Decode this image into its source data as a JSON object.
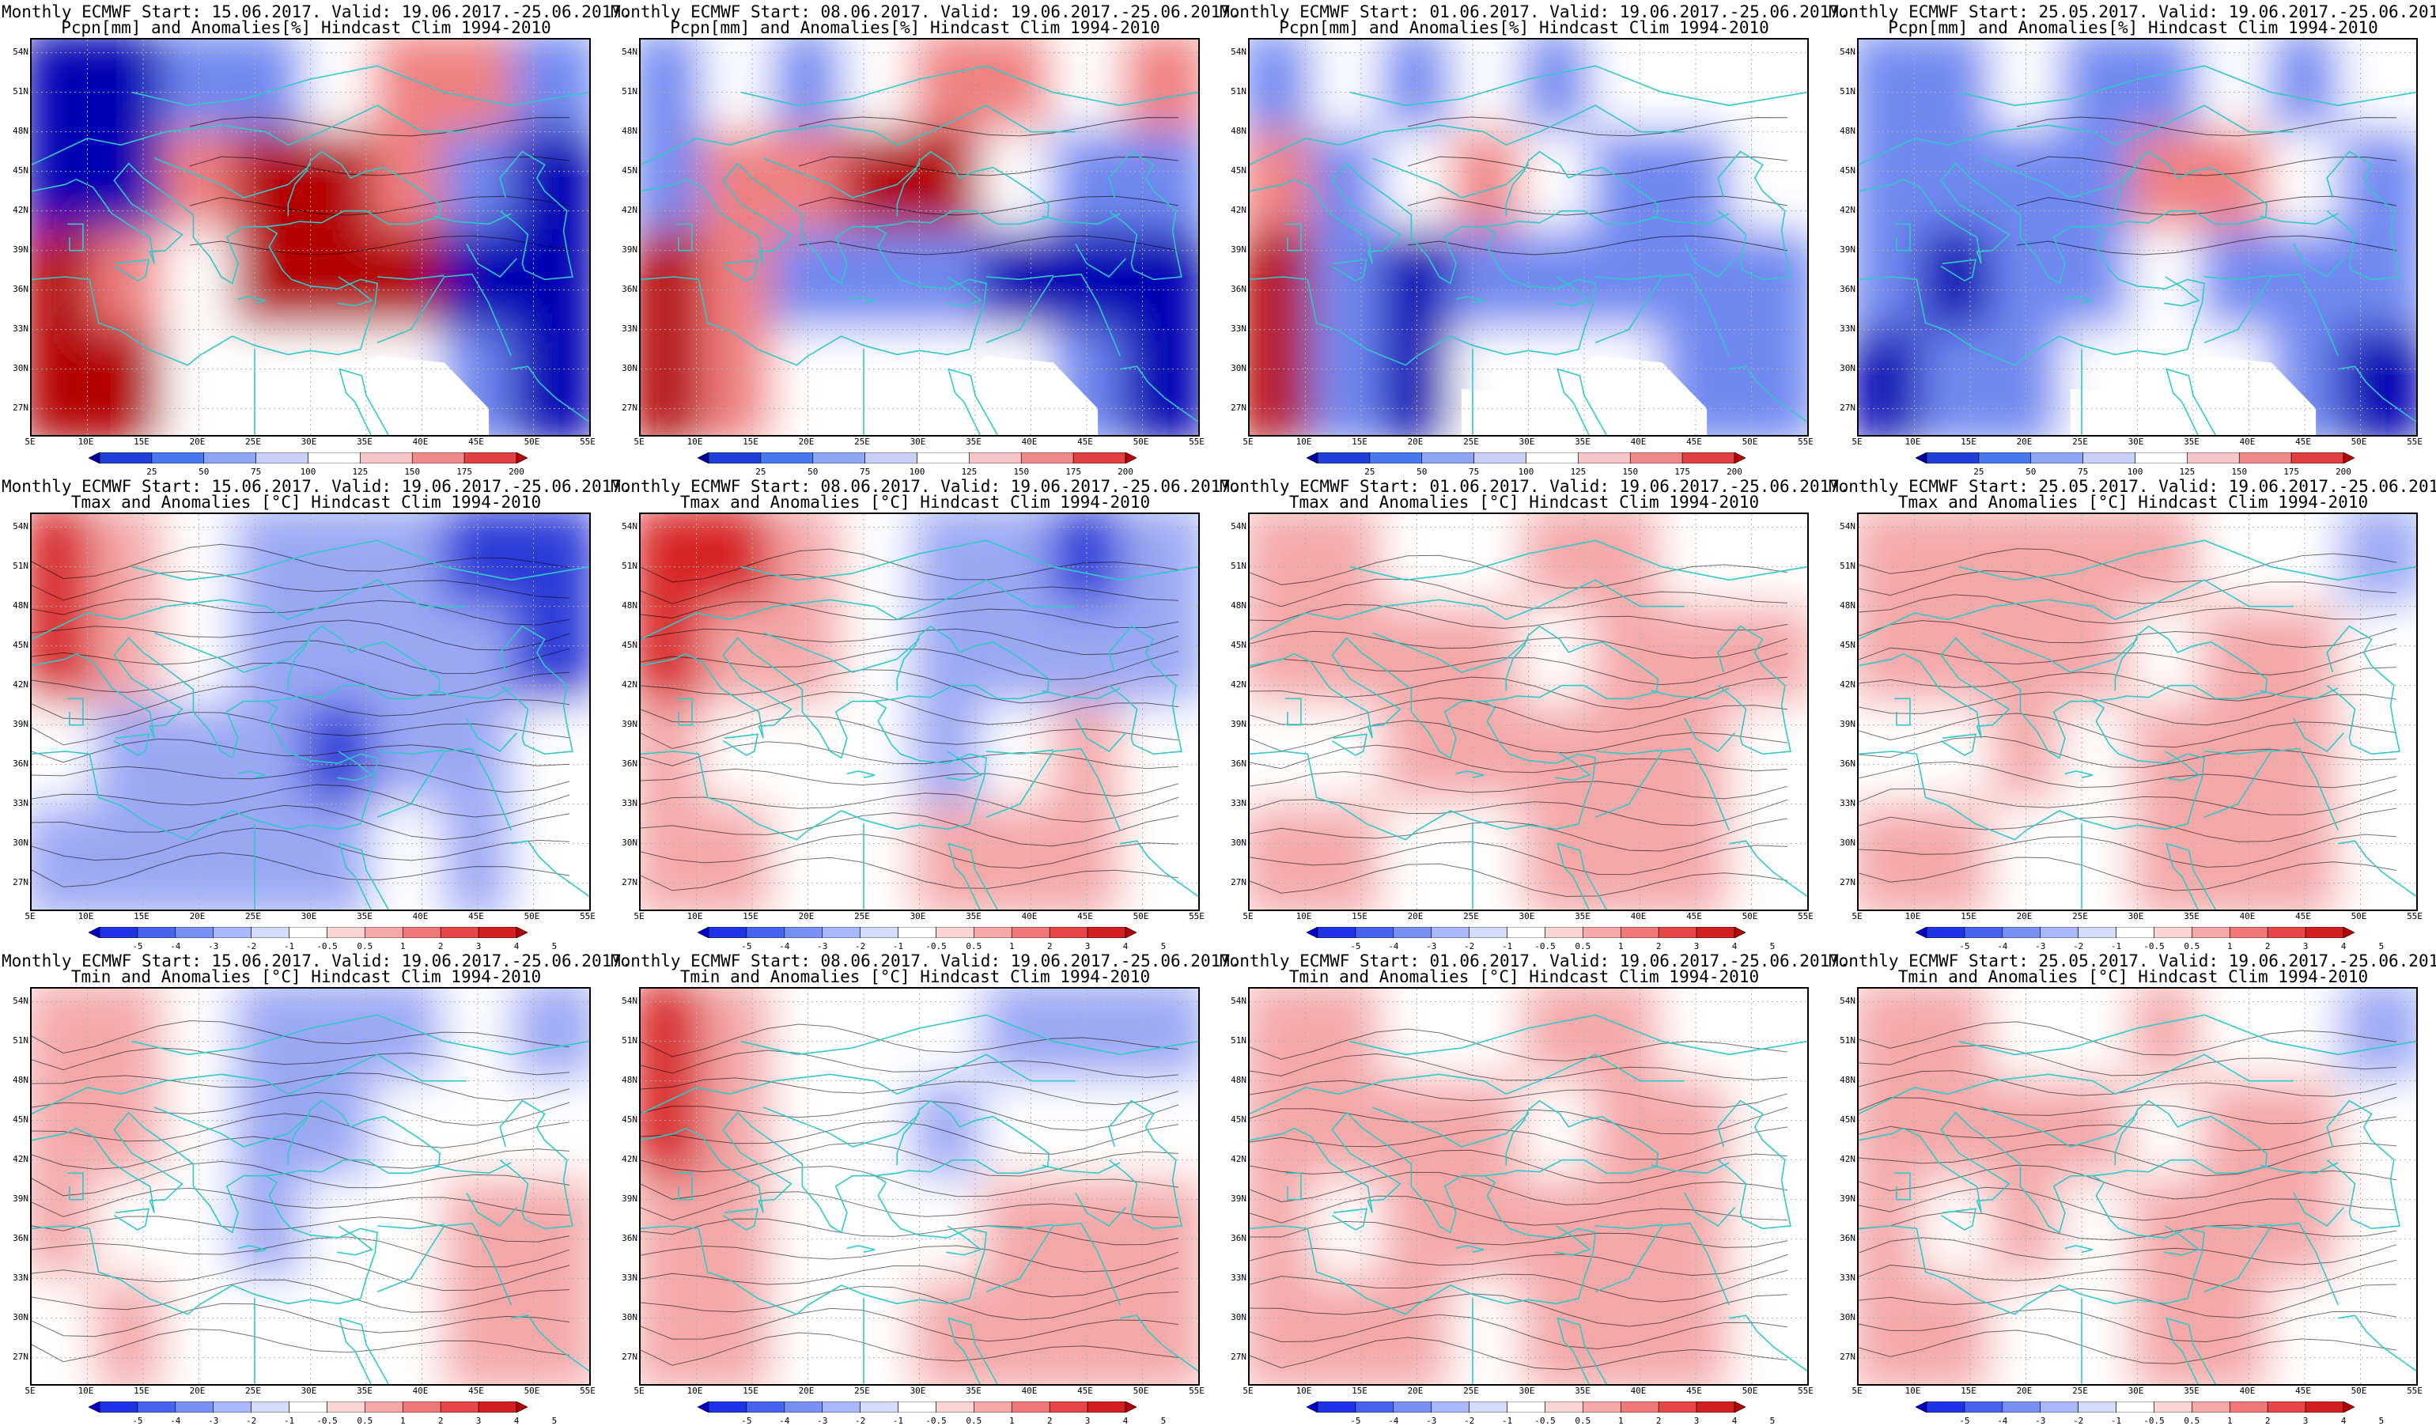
{
  "rows": [
    {
      "variable": "precip",
      "subtitle": "Pcpn[mm] and Anomalies[%] Hindcast Clim 1994-2010",
      "colorbar_labels": [
        "25",
        "50",
        "75",
        "100",
        "125",
        "150",
        "175",
        "200"
      ],
      "colorbar_colors": [
        "#0000a0",
        "#1f3fd8",
        "#4a78f0",
        "#8fa6f5",
        "#c8d0f8",
        "#ffffff",
        "#f6c6c6",
        "#f08a8a",
        "#e04040",
        "#b80000"
      ]
    },
    {
      "variable": "tmax",
      "subtitle": "Tmax and Anomalies [°C] Hindcast Clim 1994-2010",
      "colorbar_labels": [
        "-5",
        "-4",
        "-3",
        "-2",
        "-1",
        "-0.5",
        "0.5",
        "1",
        "2",
        "3",
        "4",
        "5"
      ],
      "colorbar_colors": [
        "#0000c8",
        "#1e32e6",
        "#4664f0",
        "#7890f5",
        "#a8b8f8",
        "#d4dcfb",
        "#ffffff",
        "#fbd4d4",
        "#f6a8a8",
        "#f07878",
        "#e64646",
        "#d21e1e",
        "#b40000"
      ]
    },
    {
      "variable": "tmin",
      "subtitle": "Tmin and Anomalies [°C] Hindcast Clim 1994-2010",
      "colorbar_labels": [
        "-5",
        "-4",
        "-3",
        "-2",
        "-1",
        "-0.5",
        "0.5",
        "1",
        "2",
        "3",
        "4",
        "5"
      ],
      "colorbar_colors": [
        "#0000c8",
        "#1e32e6",
        "#4664f0",
        "#7890f5",
        "#a8b8f8",
        "#d4dcfb",
        "#ffffff",
        "#fbd4d4",
        "#f6a8a8",
        "#f07878",
        "#e64646",
        "#d21e1e",
        "#b40000"
      ]
    }
  ],
  "columns": [
    {
      "title": "Monthly ECMWF Start: 15.06.2017. Valid: 19.06.2017.-25.06.2017."
    },
    {
      "title": "Monthly ECMWF Start: 08.06.2017. Valid: 19.06.2017.-25.06.2017."
    },
    {
      "title": "Monthly ECMWF Start: 01.06.2017. Valid: 19.06.2017.-25.06.2017."
    },
    {
      "title": "Monthly ECMWF Start: 25.05.2017. Valid: 19.06.2017.-25.06.2017."
    }
  ],
  "map_extent": {
    "lon": [
      5,
      55
    ],
    "lat": [
      25,
      55
    ]
  },
  "lat_labels": [
    "54N",
    "51N",
    "48N",
    "45N",
    "42N",
    "39N",
    "36N",
    "33N",
    "30N",
    "27N"
  ],
  "lon_labels": [
    "5E",
    "10E",
    "15E",
    "20E",
    "25E",
    "30E",
    "35E",
    "40E",
    "45E",
    "50E",
    "55E"
  ],
  "anomaly_patterns": {
    "precip": [
      [
        [
          -2,
          -2,
          -1,
          -1,
          0,
          1,
          1,
          -1
        ],
        [
          -2,
          -2,
          1,
          2,
          2,
          1,
          -1,
          -2
        ],
        [
          2,
          1,
          0,
          2,
          2,
          2,
          -2,
          -2
        ],
        [
          2,
          2,
          0,
          0,
          0,
          0,
          -1,
          -2
        ]
      ],
      [
        [
          -1,
          0,
          -1,
          0,
          1,
          1,
          0,
          1
        ],
        [
          -1,
          1,
          1,
          2,
          2,
          0,
          -1,
          -1
        ],
        [
          2,
          1,
          -1,
          -1,
          -1,
          -2,
          -2,
          -2
        ],
        [
          2,
          1,
          0,
          0,
          0,
          0,
          -1,
          -2
        ]
      ],
      [
        [
          -1,
          0,
          -1,
          0,
          -1,
          0,
          0,
          0
        ],
        [
          1,
          -1,
          0,
          1,
          0,
          -1,
          -1,
          0
        ],
        [
          2,
          -1,
          -2,
          -1,
          -1,
          -1,
          -1,
          -1
        ],
        [
          2,
          -1,
          -2,
          0,
          0,
          0,
          -1,
          -1
        ]
      ],
      [
        [
          -1,
          -1,
          0,
          -1,
          -1,
          0,
          -1,
          0
        ],
        [
          -1,
          -1,
          -1,
          -1,
          1,
          1,
          0,
          -1
        ],
        [
          -1,
          -2,
          -1,
          -1,
          0,
          -1,
          -1,
          -1
        ],
        [
          -2,
          -1,
          -1,
          0,
          0,
          0,
          -1,
          -2
        ]
      ]
    ],
    "tmax": [
      [
        [
          2,
          1,
          0,
          -1,
          -1,
          -1,
          -2,
          -2
        ],
        [
          2,
          1,
          0,
          -1,
          -1,
          -1,
          -1,
          -2
        ],
        [
          0,
          -1,
          -1,
          -1,
          -2,
          -1,
          -1,
          0
        ],
        [
          -1,
          -1,
          -1,
          -1,
          -1,
          0,
          -1,
          0
        ]
      ],
      [
        [
          2,
          2,
          1,
          0,
          -1,
          -1,
          -2,
          -1
        ],
        [
          2,
          1,
          1,
          0,
          -1,
          -1,
          -1,
          -1
        ],
        [
          1,
          0,
          0,
          0,
          -1,
          0,
          1,
          0
        ],
        [
          1,
          1,
          0,
          0,
          1,
          1,
          1,
          0
        ]
      ],
      [
        [
          1,
          1,
          0,
          0,
          1,
          1,
          0,
          0
        ],
        [
          1,
          1,
          1,
          1,
          0,
          1,
          1,
          1
        ],
        [
          0,
          0,
          1,
          1,
          1,
          1,
          1,
          0
        ],
        [
          1,
          1,
          0,
          0,
          1,
          1,
          1,
          0
        ]
      ],
      [
        [
          1,
          1,
          1,
          1,
          1,
          0,
          0,
          -1
        ],
        [
          1,
          1,
          1,
          1,
          0,
          1,
          1,
          0
        ],
        [
          0,
          0,
          1,
          0,
          1,
          1,
          1,
          0
        ],
        [
          1,
          1,
          0,
          0,
          1,
          1,
          1,
          0
        ]
      ]
    ],
    "tmin": [
      [
        [
          1,
          1,
          0,
          -1,
          -1,
          -1,
          0,
          -1
        ],
        [
          1,
          1,
          0,
          -1,
          -1,
          0,
          0,
          0
        ],
        [
          1,
          0,
          0,
          -1,
          0,
          0,
          1,
          1
        ],
        [
          0,
          1,
          0,
          0,
          0,
          0,
          1,
          1
        ]
      ],
      [
        [
          2,
          1,
          0,
          0,
          0,
          -1,
          -1,
          -1
        ],
        [
          2,
          1,
          0,
          0,
          -1,
          0,
          0,
          0
        ],
        [
          1,
          1,
          0,
          0,
          0,
          1,
          1,
          1
        ],
        [
          1,
          1,
          0,
          0,
          1,
          1,
          1,
          1
        ]
      ],
      [
        [
          1,
          1,
          0,
          0,
          1,
          1,
          0,
          0
        ],
        [
          1,
          1,
          1,
          1,
          0,
          1,
          1,
          0
        ],
        [
          1,
          0,
          1,
          1,
          1,
          1,
          1,
          0
        ],
        [
          1,
          1,
          1,
          0,
          1,
          1,
          1,
          0
        ]
      ],
      [
        [
          1,
          1,
          0,
          0,
          1,
          0,
          0,
          -1
        ],
        [
          1,
          1,
          1,
          1,
          0,
          1,
          1,
          0
        ],
        [
          1,
          0,
          1,
          0,
          1,
          1,
          1,
          0
        ],
        [
          1,
          1,
          0,
          0,
          1,
          1,
          0,
          0
        ]
      ]
    ]
  },
  "colors": {
    "coastline": "#30c8c8",
    "contour": "#000000",
    "grid": "#b0b0b0",
    "anom_neg2": "#2a3ad8",
    "anom_neg1": "#9aa8f4",
    "anom_zero": "#ffffff",
    "anom_pos1": "#f4a8a8",
    "anom_pos2": "#d82020",
    "precip_neg2": "#0000b4",
    "precip_neg1": "#7088f0",
    "precip_pos1": "#f08080",
    "precip_pos2": "#b40000"
  }
}
